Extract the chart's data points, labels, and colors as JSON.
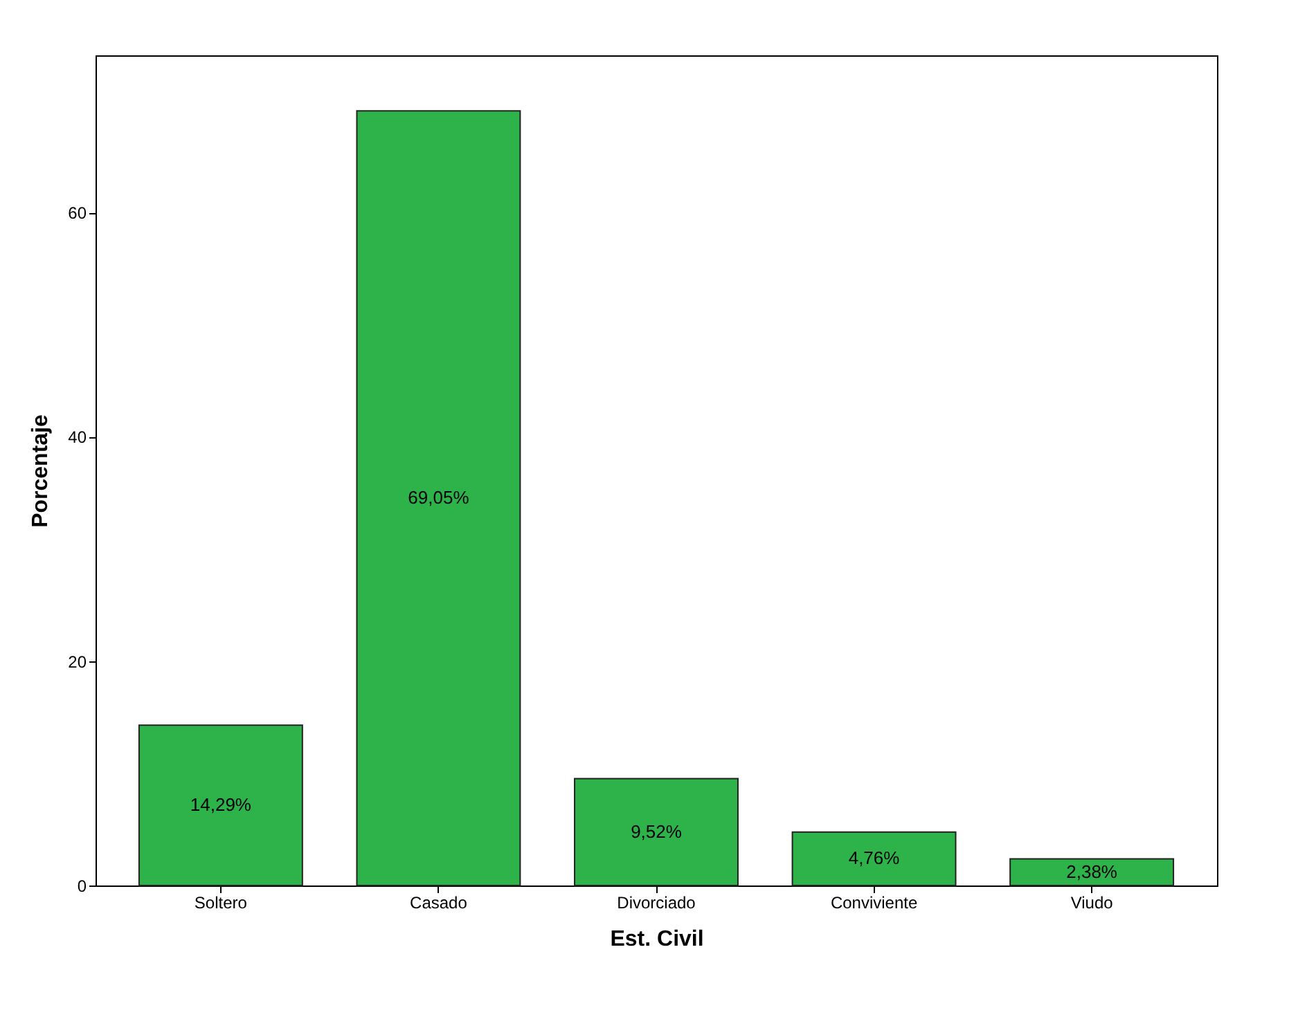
{
  "chart_data": {
    "type": "bar",
    "xlabel": "Est. Civil",
    "ylabel": "Porcentaje",
    "categories": [
      "Soltero",
      "Casado",
      "Divorciado",
      "Conviviente",
      "Viudo"
    ],
    "values": [
      14.29,
      69.05,
      9.52,
      4.76,
      2.38
    ],
    "value_labels": [
      "14,29%",
      "69,05%",
      "9,52%",
      "4,76%",
      "2,38%"
    ],
    "color": "#2db34a",
    "ylim": [
      0,
      74
    ],
    "yticks": [
      0,
      20,
      40,
      60
    ],
    "grid": false
  }
}
